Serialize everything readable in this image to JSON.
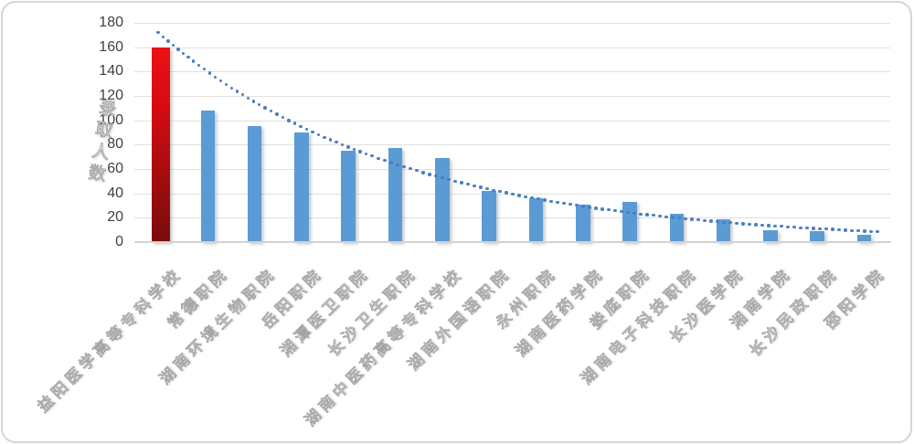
{
  "chart_data": {
    "type": "bar",
    "title": "",
    "xlabel": "",
    "ylabel": "录取人数",
    "categories": [
      "益阳医学高等专科学校",
      "常德职院",
      "湖南环境生物职院",
      "岳阳职院",
      "湘潭医卫职院",
      "长沙卫生职院",
      "湖南中医药高等专科学校",
      "湖南外国语职院",
      "永州职院",
      "湖南医药学院",
      "娄底职院",
      "湖南电子科技职院",
      "长沙医学院",
      "湘南学院",
      "长沙民政职院",
      "邵阳学院"
    ],
    "values": [
      160,
      108,
      95,
      90,
      75,
      77,
      69,
      42,
      36,
      31,
      33,
      23,
      19,
      10,
      9,
      6
    ],
    "ylim": [
      0,
      180
    ],
    "yticks": [
      0,
      20,
      40,
      60,
      80,
      100,
      120,
      140,
      160,
      180
    ],
    "grid": "horizontal",
    "legend": null,
    "highlight": {
      "index": 0,
      "color_top": "#ec1016",
      "color_bottom": "#7a0b0b"
    },
    "colors": {
      "bar": "#5b9bd5",
      "highlight_bar": "#c00b0f",
      "trendline": "#4a7fc1",
      "gridline": "#e0e0e0",
      "tick_text": "#404040",
      "label_outline": "#a3a3a3"
    },
    "trendline": {
      "type": "exponential",
      "style": "dotted",
      "color": "#4a7fc1",
      "start_value": 170,
      "decay_per_bar": 0.195,
      "end_value": 9
    }
  }
}
